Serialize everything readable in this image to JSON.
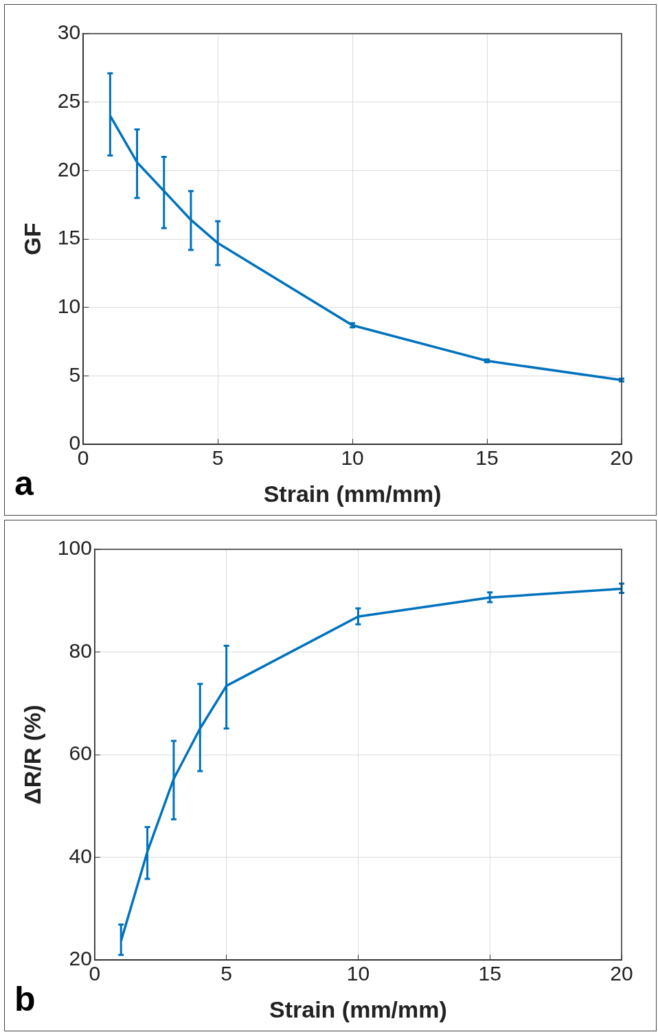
{
  "chart_data": [
    {
      "type": "line",
      "xlabel": "Strain (mm/mm)",
      "ylabel": "GF",
      "x": [
        1,
        2,
        3,
        4,
        5,
        10,
        15,
        20
      ],
      "series": [
        {
          "color": "#0072bd",
          "values": [
            24,
            20.6,
            18.5,
            16.4,
            14.7,
            8.7,
            6.1,
            4.7
          ],
          "errors": [
            [
              21.1,
              27.1
            ],
            [
              18,
              23
            ],
            [
              15.8,
              21
            ],
            [
              14.2,
              18.5
            ],
            [
              13.1,
              16.3
            ],
            [
              8.55,
              8.85
            ],
            [
              6,
              6.2
            ],
            [
              4.6,
              4.8
            ]
          ]
        }
      ],
      "xlim": [
        0,
        20
      ],
      "xticks": [
        0,
        5,
        10,
        15,
        20
      ],
      "ylim": [
        0,
        30
      ],
      "yticks": [
        0,
        5,
        10,
        15,
        20,
        25,
        30
      ],
      "grid": true,
      "legend": false,
      "marker": "none",
      "line_style": "solid",
      "annotations": [
        "a"
      ]
    },
    {
      "type": "line",
      "xlabel": "Strain (mm/mm)",
      "ylabel": "ΔR/R (%)",
      "x": [
        1,
        2,
        3,
        4,
        5,
        10,
        15,
        20
      ],
      "series": [
        {
          "color": "#0072bd",
          "values": [
            23.7,
            41.1,
            55.3,
            65.1,
            73.4,
            86.9,
            90.6,
            92.3
          ],
          "errors": [
            [
              21,
              26.9
            ],
            [
              35.8,
              45.9
            ],
            [
              47.4,
              62.7
            ],
            [
              56.8,
              73.8
            ],
            [
              65.1,
              81.2
            ],
            [
              85.4,
              88.5
            ],
            [
              89.7,
              91.6
            ],
            [
              91.5,
              93.3
            ]
          ]
        }
      ],
      "xlim": [
        0,
        20
      ],
      "xticks": [
        0,
        5,
        10,
        15,
        20
      ],
      "ylim": [
        20,
        100
      ],
      "yticks": [
        20,
        40,
        60,
        80,
        100
      ],
      "grid": true,
      "legend": false,
      "marker": "none",
      "line_style": "solid",
      "annotations": [
        "b"
      ]
    }
  ]
}
